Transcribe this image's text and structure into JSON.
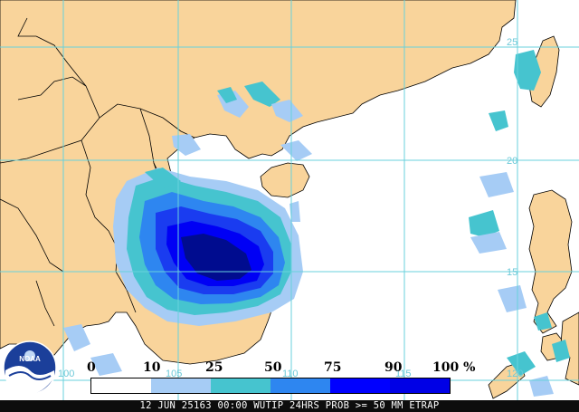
{
  "map": {
    "colors": {
      "land": "#f9d49b",
      "ocean": "#ffffff",
      "grid": "#68d2dc",
      "border": "#000000",
      "prob_10": "#a6ccf5",
      "prob_25": "#46c4cf",
      "prob_50": "#2e86f0",
      "prob_75": "#1a3cf0",
      "prob_90": "#0000f5",
      "prob_100": "#000c8f"
    },
    "lat_labels": [
      "25",
      "20",
      "15"
    ],
    "lon_labels": [
      "100",
      "105",
      "110",
      "115",
      "120"
    ],
    "extra_lat_label": "15"
  },
  "legend": {
    "labels": [
      "0",
      "10",
      "25",
      "50",
      "75",
      "90",
      "100 %"
    ],
    "swatches": [
      "#ffffff",
      "#a6ccf5",
      "#46c4cf",
      "#2e86f0",
      "#0000ff",
      "#0000e6",
      "#00008f"
    ]
  },
  "footer": {
    "text": "12 JUN 25163 00:00 WUTIP 24HRS PROB >= 50 MM ETRAP"
  },
  "logo": {
    "text": "NOAA"
  }
}
